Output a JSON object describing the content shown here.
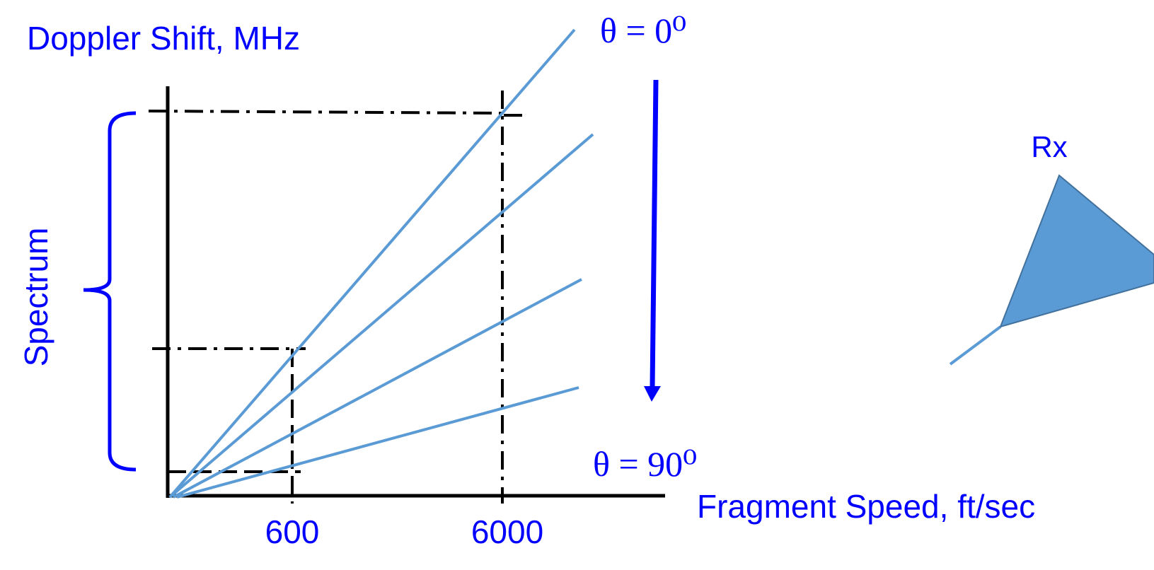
{
  "y_axis_label": "Doppler Shift, MHz",
  "x_axis_label": "Fragment Speed, ft/sec",
  "x_tick_labels": [
    "600",
    "6000"
  ],
  "brace_label": "Spectrum",
  "angle_labels": [
    "θ = 0⁰",
    "θ = 90⁰"
  ],
  "antenna_label": "Rx"
}
